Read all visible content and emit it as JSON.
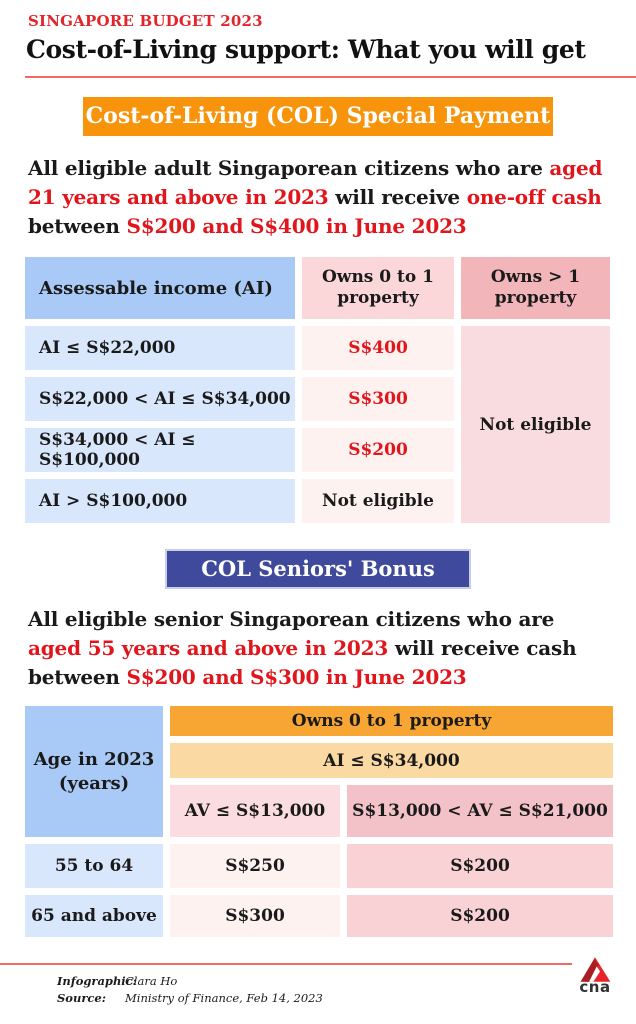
{
  "header": {
    "kicker": "SINGAPORE BUDGET 2023",
    "title": "Cost-of-Living support: What you will get"
  },
  "special_payment": {
    "banner": "Cost-of-Living (COL) Special Payment",
    "intro": [
      {
        "text": "All eligible adult Singaporean citizens who are ",
        "red": false
      },
      {
        "text": "aged 21 years and above in 2023",
        "red": true
      },
      {
        "text": " will receive ",
        "red": false
      },
      {
        "text": "one-off cash",
        "red": true
      },
      {
        "text": " between ",
        "red": false
      },
      {
        "text": "S$200 and S$400 in June 2023",
        "red": true
      }
    ],
    "table": {
      "income_header": "Assessable income (AI)",
      "owns01_header": "Owns 0 to 1 property",
      "owns_more_header": "Owns > 1 property",
      "rows": [
        {
          "income": "AI ≤ S$22,000",
          "amount": "S$400"
        },
        {
          "income": "S$22,000 < AI ≤ S$34,000",
          "amount": "S$300"
        },
        {
          "income": "S$34,000 < AI ≤ S$100,000",
          "amount": "S$200"
        },
        {
          "income": "AI > S$100,000",
          "amount": "Not eligible"
        }
      ],
      "owns_more_value": "Not eligible"
    }
  },
  "seniors_bonus": {
    "banner": "COL Seniors' Bonus",
    "intro": [
      {
        "text": "All eligible senior Singaporean citizens who are ",
        "red": false
      },
      {
        "text": "aged 55 years and above in 2023",
        "red": true
      },
      {
        "text": " will receive cash between ",
        "red": false
      },
      {
        "text": "S$200 and S$300 in June 2023",
        "red": true
      }
    ],
    "table": {
      "age_header": "Age in 2023 (years)",
      "property_header": "Owns 0 to 1 property",
      "income_header": "AI ≤ S$34,000",
      "av1_header": "AV ≤ S$13,000",
      "av2_header": "S$13,000 < AV ≤ S$21,000",
      "rows": [
        {
          "age": "55 to 64",
          "av1_amount": "S$250",
          "av2_amount": "S$200"
        },
        {
          "age": "65 and above",
          "av1_amount": "S$300",
          "av2_amount": "S$200"
        }
      ]
    }
  },
  "footer": {
    "infographic_label": "Infographic:",
    "infographic_value": "Clara Ho",
    "source_label": "Source:",
    "source_value": "Ministry of Finance, Feb 14, 2023",
    "logo_text": "cna"
  },
  "colors": {
    "accent_red_text": "#e0161c",
    "kicker_red": "#e3242b",
    "divider_red": "#ef6c65",
    "banner_orange": "#f8940c",
    "banner_blue": "#404a9c",
    "header_blue": "#a9c9f6",
    "row_blue": "#d9e7fc",
    "pink_header": "#fbd7d9",
    "rose_header": "#f2b5b9",
    "pink_light": "#fdf2f0",
    "pink_merged": "#f9dcdf",
    "table2_orange": "#f7a634",
    "table2_light_orange": "#fbd9a3",
    "logo_red": "#e8232a"
  }
}
